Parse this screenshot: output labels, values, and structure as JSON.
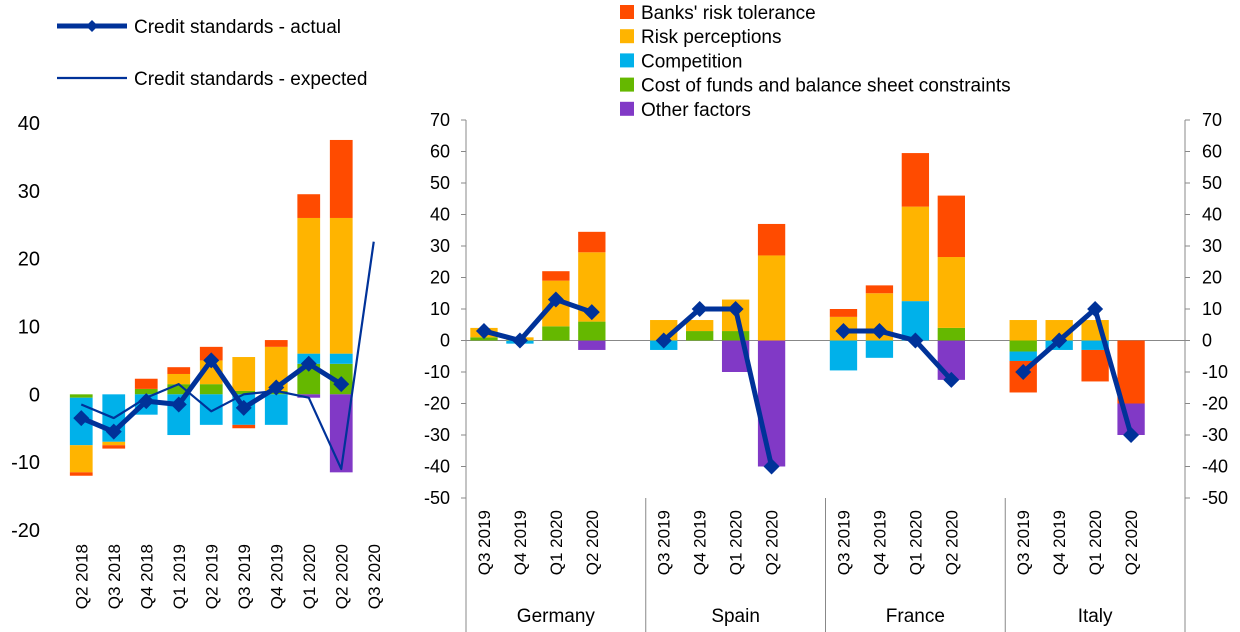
{
  "legend_lines": [
    {
      "label": "Credit standards - actual",
      "color": "#003299",
      "style": "thick-diamond"
    },
    {
      "label": "Credit standards - expected",
      "color": "#003299",
      "style": "thin"
    }
  ],
  "legend_factors": [
    {
      "label": "Banks' risk tolerance",
      "color": "#ff4b00"
    },
    {
      "label": "Risk perceptions",
      "color": "#ffb400"
    },
    {
      "label": "Competition",
      "color": "#00b1ea"
    },
    {
      "label": "Cost of funds and balance sheet constraints",
      "color": "#65b800"
    },
    {
      "label": "Other factors",
      "color": "#8139c6"
    }
  ],
  "chart_data": [
    {
      "type": "bar",
      "stacked": true,
      "panel": "euro area",
      "categories": [
        "Q2 2018",
        "Q3 2018",
        "Q4 2018",
        "Q1 2019",
        "Q2 2019",
        "Q3 2019",
        "Q4 2019",
        "Q1 2020",
        "Q2 2020",
        "Q3 2020"
      ],
      "ylim": [
        -20,
        40
      ],
      "yticks": [
        "-20",
        "-10",
        "0",
        "10",
        "20",
        "30",
        "40"
      ],
      "series": [
        {
          "name": "Cost of funds and balance sheet constraints",
          "color": "#65b800",
          "values": [
            -0.5,
            0,
            0.8,
            1.5,
            1.5,
            0.5,
            0.5,
            4.5,
            4.5,
            null
          ]
        },
        {
          "name": "Competition",
          "color": "#00b1ea",
          "values": [
            -7,
            -7,
            -3,
            -6,
            -4.5,
            -4.5,
            -4.5,
            1.5,
            1.5,
            null
          ]
        },
        {
          "name": "Risk perceptions",
          "color": "#ffb400",
          "values": [
            -4,
            -0.5,
            0,
            1.5,
            3.5,
            5,
            6.5,
            20,
            20,
            null
          ]
        },
        {
          "name": "Banks' risk tolerance",
          "color": "#ff4b00",
          "values": [
            -0.5,
            -0.5,
            1.5,
            1,
            2,
            -0.5,
            1,
            3.5,
            11.5,
            null
          ]
        },
        {
          "name": "Other factors",
          "color": "#8139c6",
          "values": [
            0,
            0,
            0,
            0,
            0,
            0,
            0,
            -0.5,
            -11.5,
            null
          ]
        }
      ],
      "lines": [
        {
          "name": "Credit standards - actual",
          "color": "#003299",
          "values": [
            -3.5,
            -5.5,
            -1,
            -1.5,
            5,
            -2,
            1,
            4.5,
            1.5,
            null
          ]
        },
        {
          "name": "Credit standards - expected",
          "color": "#003299",
          "values": [
            -1.5,
            -3.5,
            -0.5,
            1.5,
            -2.5,
            0,
            0.5,
            -0.5,
            -11,
            22.5
          ]
        }
      ]
    },
    {
      "type": "bar",
      "stacked": true,
      "panel": "countries",
      "groups": [
        {
          "name": "Germany",
          "categories": [
            "Q3 2019",
            "Q4 2019",
            "Q1 2020",
            "Q2 2020"
          ]
        },
        {
          "name": "Spain",
          "categories": [
            "Q3 2019",
            "Q4 2019",
            "Q1 2020",
            "Q2 2020"
          ]
        },
        {
          "name": "France",
          "categories": [
            "Q3 2019",
            "Q4 2019",
            "Q1 2020",
            "Q2 2020"
          ]
        },
        {
          "name": "Italy",
          "categories": [
            "Q3 2019",
            "Q4 2019",
            "Q1 2020",
            "Q2 2020"
          ]
        }
      ],
      "ylim": [
        -50,
        70
      ],
      "yticks": [
        "-50",
        "-40",
        "-30",
        "-20",
        "-10",
        "0",
        "10",
        "20",
        "30",
        "40",
        "50",
        "60",
        "70"
      ],
      "series": [
        {
          "name": "Cost of funds and balance sheet constraints",
          "color": "#65b800",
          "values": [
            1,
            0,
            4.5,
            6,
            0,
            3,
            3,
            0,
            0,
            0,
            0,
            4,
            -3.5,
            0,
            0,
            0
          ]
        },
        {
          "name": "Competition",
          "color": "#00b1ea",
          "values": [
            0,
            -1,
            0,
            0,
            -3,
            0,
            0,
            0,
            -9.5,
            -5.5,
            12.5,
            0,
            -3,
            -3,
            -3,
            0
          ]
        },
        {
          "name": "Risk perceptions",
          "color": "#ffb400",
          "values": [
            3,
            1,
            14.5,
            22,
            6.5,
            3.5,
            10,
            27,
            7.5,
            15,
            30,
            22.5,
            6.5,
            6.5,
            6.5,
            0
          ]
        },
        {
          "name": "Banks' risk tolerance",
          "color": "#ff4b00",
          "values": [
            0,
            0,
            3,
            6.5,
            0,
            0,
            0,
            10,
            2.5,
            2.5,
            17,
            19.5,
            -10,
            0,
            -10,
            -20
          ]
        },
        {
          "name": "Other factors",
          "color": "#8139c6",
          "values": [
            0,
            0,
            0,
            -3,
            0,
            0,
            -10,
            -40,
            0,
            0,
            0,
            -12.5,
            0,
            0,
            0,
            -10
          ]
        }
      ],
      "lines": [
        {
          "name": "Credit standards - actual",
          "color": "#003299",
          "values": [
            3,
            0,
            13,
            9,
            0,
            10,
            10,
            -40,
            3,
            3,
            0,
            -12.5,
            -10,
            0,
            10,
            -30
          ]
        }
      ]
    }
  ]
}
